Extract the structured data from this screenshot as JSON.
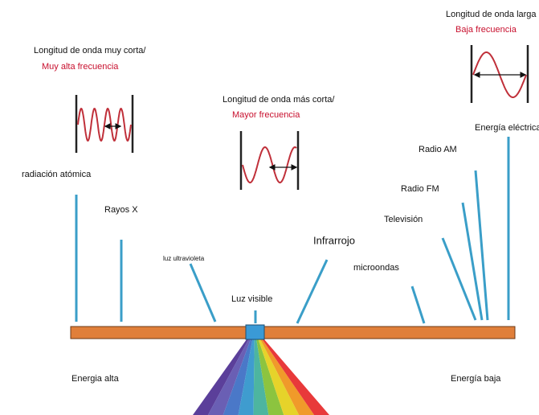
{
  "waves": [
    {
      "heading": "Longitud de onda muy corta/",
      "frequency": "Muy alta frecuencia"
    },
    {
      "heading": "Longitud de onda más corta/",
      "frequency": "Mayor frecuencia"
    },
    {
      "heading": "Longitud de onda larga",
      "frequency": "Baja frecuencia"
    }
  ],
  "bands": [
    "radiación atómica",
    "Rayos X",
    "luz ultravioleta",
    "Luz visible",
    "Infrarrojo",
    "microondas",
    "Televisión",
    "Radio FM",
    "Radio AM",
    "Energía eléctrica"
  ],
  "ends": {
    "high": "Energia alta",
    "low": "Energía baja"
  }
}
